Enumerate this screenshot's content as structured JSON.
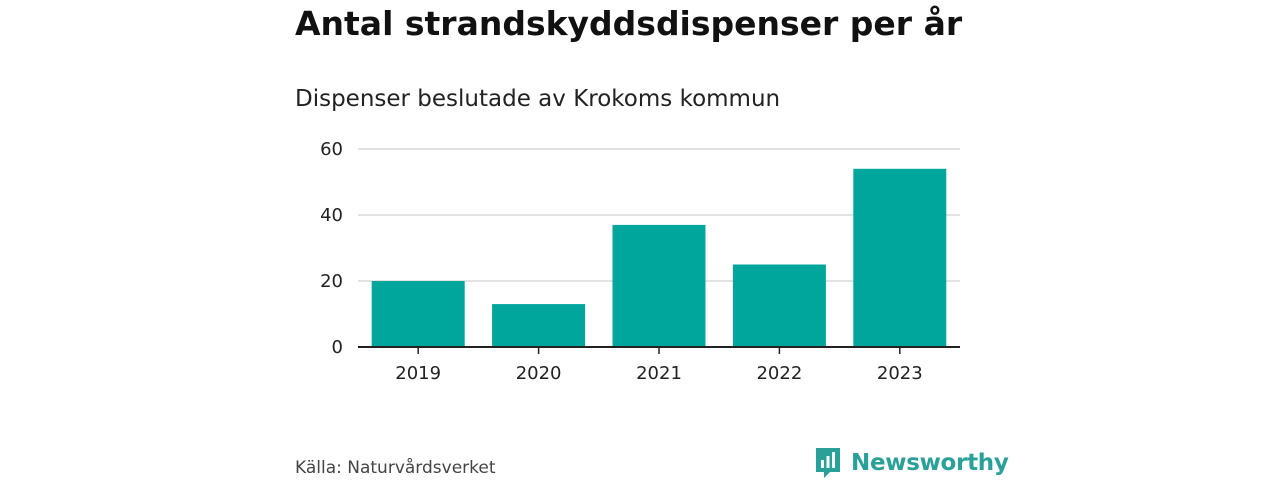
{
  "chart_data": {
    "type": "bar",
    "title": "Antal strandskyddsdispenser per år",
    "subtitle": "Dispenser beslutade av Krokoms kommun",
    "categories": [
      "2019",
      "2020",
      "2021",
      "2022",
      "2023"
    ],
    "values": [
      20,
      13,
      37,
      25,
      54
    ],
    "yticks": [
      0,
      20,
      40,
      60
    ],
    "ylim": [
      0,
      60
    ],
    "xlabel": "",
    "ylabel": "",
    "grid": true,
    "bar_color": "#00a59b"
  },
  "footer": {
    "source": "Källa: Naturvårdsverket",
    "brand": "Newsworthy",
    "brand_color": "#2aa198"
  }
}
